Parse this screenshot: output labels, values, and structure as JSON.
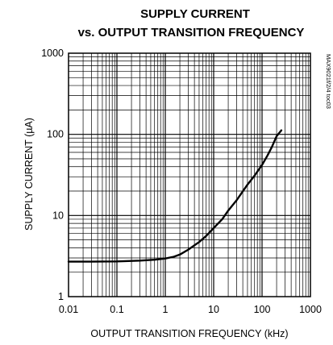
{
  "chart_data": {
    "type": "line",
    "title": "SUPPLY CURRENT",
    "subtitle": "vs. OUTPUT TRANSITION FREQUENCY",
    "xlabel": "OUTPUT TRANSITION FREQUENCY (kHz)",
    "ylabel": "SUPPLY CURRENT (µA)",
    "x_scale": "log",
    "y_scale": "log",
    "xlim": [
      0.01,
      1000
    ],
    "ylim": [
      1,
      1000
    ],
    "x_ticks": [
      "0.01",
      "0.1",
      "1",
      "10",
      "100",
      "1000"
    ],
    "y_ticks": [
      "1",
      "10",
      "100",
      "1000"
    ],
    "grid": true,
    "figure_code": "MAX9021f/2/4 toc03",
    "series": [
      {
        "color": "#000000",
        "x": [
          0.01,
          0.03,
          0.1,
          0.3,
          0.6,
          1,
          1.5,
          2,
          3,
          5,
          7,
          10,
          15,
          20,
          30,
          50,
          70,
          100,
          130,
          160,
          200,
          250
        ],
        "y": [
          2.7,
          2.7,
          2.72,
          2.78,
          2.85,
          2.95,
          3.1,
          3.3,
          3.8,
          4.7,
          5.6,
          7.0,
          9.0,
          11.5,
          15.5,
          24,
          31,
          42,
          55,
          70,
          95,
          112
        ]
      }
    ]
  }
}
